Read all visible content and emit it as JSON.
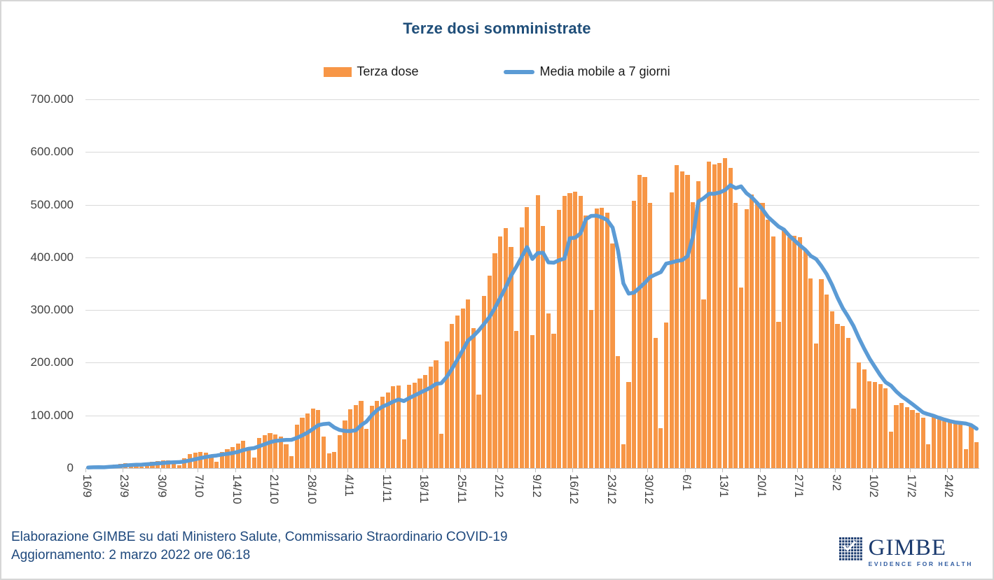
{
  "header": {
    "title": "Terze dosi somministrate"
  },
  "legend": {
    "items": [
      {
        "label": "Terza dose",
        "swatch": "bar"
      },
      {
        "label": "Media mobile a 7 giorni",
        "swatch": "line"
      }
    ]
  },
  "colors": {
    "bar": "#F79646",
    "line": "#5B9BD5",
    "title": "#1F4E79",
    "grid": "#D9D9D9",
    "axis": "#BFBFBF",
    "tick_label": "#404040",
    "footer_text": "#1F497D",
    "logo_navy": "#1B3B6F",
    "border": "#D6D6D6"
  },
  "chart_data": {
    "type": "bar",
    "title": "Terze dosi somministrate",
    "xlabel": "",
    "ylabel": "",
    "ylim": [
      0,
      700000
    ],
    "grid": "horizontal",
    "legend_position": "top",
    "y_tick_labels": [
      "0",
      "100.000",
      "200.000",
      "300.000",
      "400.000",
      "500.000",
      "600.000",
      "700.000"
    ],
    "x_tick_labels": [
      "16/9",
      "23/9",
      "30/9",
      "7/10",
      "14/10",
      "21/10",
      "28/10",
      "4/11",
      "11/11",
      "18/11",
      "25/11",
      "2/12",
      "9/12",
      "16/12",
      "23/12",
      "30/12",
      "6/1",
      "13/1",
      "20/1",
      "27/1",
      "3/2",
      "10/2",
      "17/2",
      "24/2"
    ],
    "x": [
      "16/9",
      "17/9",
      "18/9",
      "19/9",
      "20/9",
      "21/9",
      "22/9",
      "23/9",
      "24/9",
      "25/9",
      "26/9",
      "27/9",
      "28/9",
      "29/9",
      "30/9",
      "1/10",
      "2/10",
      "3/10",
      "4/10",
      "5/10",
      "6/10",
      "7/10",
      "8/10",
      "9/10",
      "10/10",
      "11/10",
      "12/10",
      "13/10",
      "14/10",
      "15/10",
      "16/10",
      "17/10",
      "18/10",
      "19/10",
      "20/10",
      "21/10",
      "22/10",
      "23/10",
      "24/10",
      "25/10",
      "26/10",
      "27/10",
      "28/10",
      "29/10",
      "30/10",
      "31/10",
      "1/11",
      "2/11",
      "3/11",
      "4/11",
      "5/11",
      "6/11",
      "7/11",
      "8/11",
      "9/11",
      "10/11",
      "11/11",
      "12/11",
      "13/11",
      "14/11",
      "15/11",
      "16/11",
      "17/11",
      "18/11",
      "19/11",
      "20/11",
      "21/11",
      "22/11",
      "23/11",
      "24/11",
      "25/11",
      "26/11",
      "27/11",
      "28/11",
      "29/11",
      "30/11",
      "1/12",
      "2/12",
      "3/12",
      "4/12",
      "5/12",
      "6/12",
      "7/12",
      "8/12",
      "9/12",
      "10/12",
      "11/12",
      "12/12",
      "13/12",
      "14/12",
      "15/12",
      "16/12",
      "17/12",
      "18/12",
      "19/12",
      "20/12",
      "21/12",
      "22/12",
      "23/12",
      "24/12",
      "25/12",
      "26/12",
      "27/12",
      "28/12",
      "29/12",
      "30/12",
      "31/12",
      "1/1",
      "2/1",
      "3/1",
      "4/1",
      "5/1",
      "6/1",
      "7/1",
      "8/1",
      "9/1",
      "10/1",
      "11/1",
      "12/1",
      "13/1",
      "14/1",
      "15/1",
      "16/1",
      "17/1",
      "18/1",
      "19/1",
      "20/1",
      "21/1",
      "22/1",
      "23/1",
      "24/1",
      "25/1",
      "26/1",
      "27/1",
      "28/1",
      "29/1",
      "30/1",
      "31/1",
      "1/2",
      "2/2",
      "3/2",
      "4/2",
      "5/2",
      "6/2",
      "7/2",
      "8/2",
      "9/2",
      "10/2",
      "11/2",
      "12/2",
      "13/2",
      "14/2",
      "15/2",
      "16/2",
      "17/2",
      "18/2",
      "19/2",
      "20/2",
      "21/2",
      "22/2",
      "23/2",
      "24/2",
      "25/2",
      "26/2",
      "27/2",
      "28/2",
      "1/3"
    ],
    "series": [
      {
        "name": "Terza dose",
        "type": "bar",
        "values": [
          1000,
          2000,
          2000,
          1000,
          5000,
          7000,
          8000,
          9000,
          8000,
          6000,
          3000,
          10000,
          12000,
          13000,
          14000,
          15000,
          10000,
          5000,
          18000,
          26000,
          29000,
          30000,
          29000,
          22000,
          12000,
          31000,
          36000,
          40000,
          46000,
          52000,
          40000,
          20000,
          57000,
          62000,
          66000,
          64000,
          60000,
          45000,
          22000,
          82000,
          95000,
          103000,
          113000,
          110000,
          60000,
          28000,
          30000,
          62000,
          90000,
          112000,
          120000,
          128000,
          75000,
          118000,
          128000,
          135000,
          143000,
          155000,
          157000,
          55000,
          158000,
          162000,
          170000,
          177000,
          192000,
          205000,
          65000,
          240000,
          273000,
          290000,
          303000,
          320000,
          265000,
          139000,
          327000,
          365000,
          408000,
          440000,
          455000,
          420000,
          260000,
          457000,
          495000,
          252000,
          518000,
          459000,
          293000,
          255000,
          490000,
          517000,
          522000,
          525000,
          517000,
          480000,
          300000,
          493000,
          494000,
          485000,
          426000,
          212000,
          45000,
          163000,
          507000,
          556000,
          552000,
          503000,
          247000,
          76000,
          276000,
          523000,
          575000,
          563000,
          556000,
          505000,
          544000,
          320000,
          582000,
          576000,
          579000,
          589000,
          570000,
          504000,
          343000,
          492000,
          520000,
          505000,
          503000,
          472000,
          440000,
          278000,
          452000,
          438000,
          441000,
          438000,
          413000,
          360000,
          236000,
          359000,
          329000,
          298000,
          273000,
          269000,
          247000,
          113000,
          200000,
          187000,
          165000,
          163000,
          160000,
          152000,
          69000,
          120000,
          124000,
          115000,
          110000,
          105000,
          95000,
          45000,
          100000,
          97000,
          92000,
          90000,
          89000,
          87000,
          36000,
          80000,
          49000
        ]
      },
      {
        "name": "Media mobile a 7 giorni",
        "type": "line",
        "derivation": "7-day trailing moving average of the Terza dose daily values"
      }
    ]
  },
  "footer": {
    "line1": "Elaborazione GIMBE su dati Ministero Salute, Commissario Straordinario COVID-19",
    "line2": "Aggiornamento: 2 marzo 2022 ore 06:18"
  },
  "logo": {
    "name": "GIMBE",
    "tagline": "EVIDENCE FOR HEALTH"
  }
}
